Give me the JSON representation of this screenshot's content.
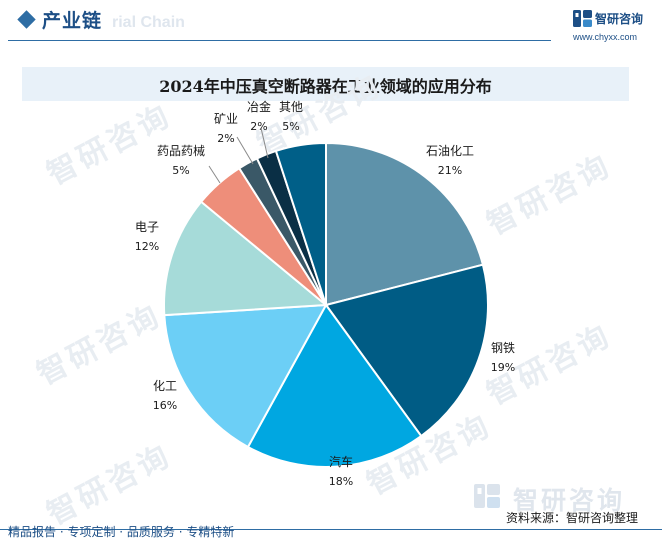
{
  "header": {
    "section_title": "产业链",
    "watermark_text": "rial Chain",
    "brand_name": "智研咨询",
    "brand_url": "www.chyxx.com",
    "accent_color": "#2e6da4",
    "brand_icon": "zhiyan-logo-icon"
  },
  "watermark": {
    "text": "智研咨询"
  },
  "chart_data": {
    "type": "pie",
    "title": "2024年中压真空断路器在工业领域的应用分布",
    "unit": "%",
    "start_angle_deg": 0,
    "direction": "clockwise",
    "slices": [
      {
        "label": "石油化工",
        "value": 21,
        "color": "#5e92aa"
      },
      {
        "label": "钢铁",
        "value": 19,
        "color": "#005c85"
      },
      {
        "label": "汽车",
        "value": 18,
        "color": "#00a7e1"
      },
      {
        "label": "化工",
        "value": 16,
        "color": "#6ccff6"
      },
      {
        "label": "电子",
        "value": 12,
        "color": "#a6dbd9"
      },
      {
        "label": "药品药械",
        "value": 5,
        "color": "#ee8e7a"
      },
      {
        "label": "矿业",
        "value": 2,
        "color": "#3a5867"
      },
      {
        "label": "冶金",
        "value": 2,
        "color": "#0a2f45"
      },
      {
        "label": "其他",
        "value": 5,
        "color": "#005f88"
      }
    ]
  },
  "footer": {
    "source": "资料来源：智研咨询整理",
    "tagline": "精品报告 · 专项定制 · 品质服务 · 专精特新",
    "source_watermark": "智研咨询"
  }
}
